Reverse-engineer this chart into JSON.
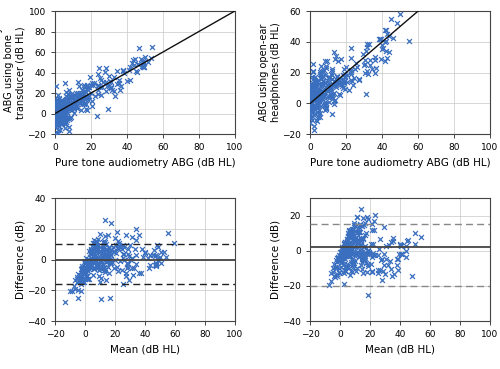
{
  "top_left": {
    "xlabel": "Pure tone audiometry ABG (dB HL)",
    "ylabel": "Mobile audiometry\nABG using bone\ntransducer (dB HL)",
    "xlim": [
      0,
      100
    ],
    "ylim": [
      -20,
      100
    ],
    "xticks": [
      0,
      20,
      40,
      60,
      80,
      100
    ],
    "yticks": [
      -20,
      0,
      20,
      40,
      60,
      80,
      100
    ],
    "line_x": [
      0,
      100
    ],
    "line_y": [
      0,
      100
    ]
  },
  "top_right": {
    "xlabel": "Pure tone audiometry ABG (dB HL)",
    "ylabel": "ABG using open-ear\nheadphones (dB HL)",
    "xlim": [
      0,
      100
    ],
    "ylim": [
      -20,
      60
    ],
    "xticks": [
      0,
      20,
      40,
      60,
      80,
      100
    ],
    "yticks": [
      -20,
      0,
      20,
      40,
      60
    ],
    "line_x": [
      0,
      100
    ],
    "line_y": [
      0,
      100
    ]
  },
  "bottom_left": {
    "xlabel": "Mean (dB HL)",
    "ylabel": "Difference (dB)",
    "xlim": [
      -20,
      100
    ],
    "ylim": [
      -40,
      40
    ],
    "xticks": [
      -20,
      0,
      20,
      40,
      60,
      80,
      100
    ],
    "yticks": [
      -40,
      -20,
      0,
      20,
      40
    ],
    "solid_line": 0.0,
    "dashed_upper": 10.0,
    "dashed_lower": -16.0
  },
  "bottom_right": {
    "xlabel": "Mean (dB HL)",
    "ylabel": "Difference (dB)",
    "xlim": [
      -20,
      100
    ],
    "ylim": [
      -40,
      30
    ],
    "xticks": [
      -20,
      0,
      20,
      40,
      60,
      80,
      100
    ],
    "yticks": [
      -40,
      -20,
      0,
      20
    ],
    "solid_line": 2.0,
    "dashed_upper": 15.0,
    "dashed_lower": -20.0
  },
  "marker_color": "#3a6fbf",
  "marker": "x",
  "marker_size": 3.5,
  "marker_lw": 0.9,
  "line_color": "#111111",
  "solid_line_color": "#444444",
  "dashed_line_color_bl": "#222222",
  "dashed_line_color_br": "#888888",
  "grid_color": "#c8c8c8",
  "bg_color": "#ffffff"
}
